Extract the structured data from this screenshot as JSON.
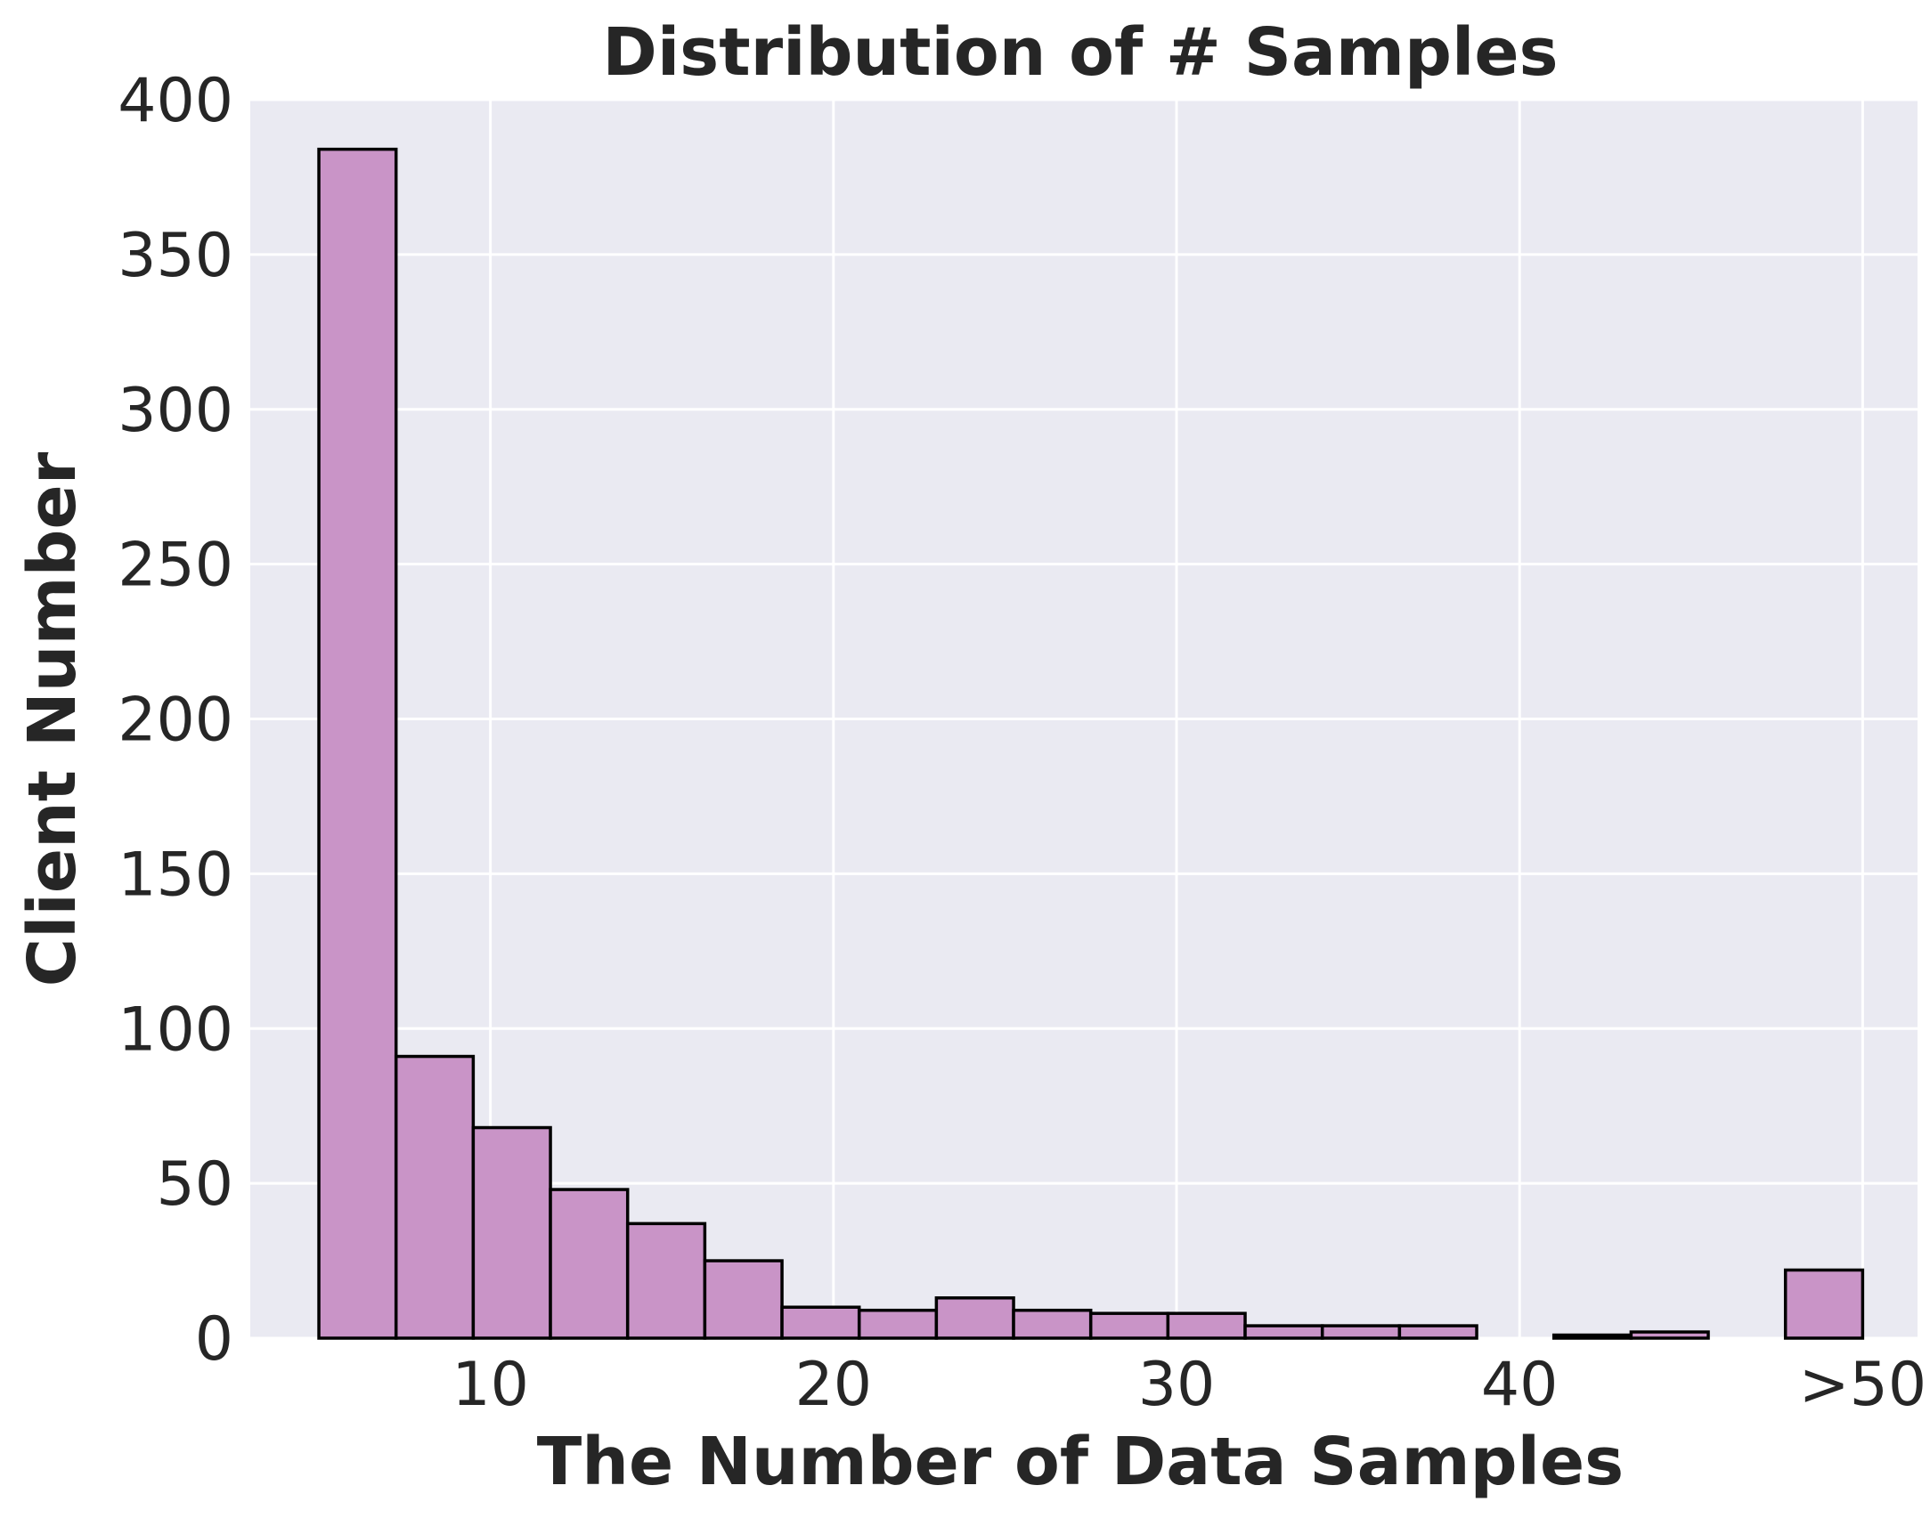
{
  "chart_data": {
    "type": "bar",
    "title": "Distribution of # Samples",
    "xlabel": "The Number of Data Samples",
    "ylabel": "Client Number",
    "xlim": [
      3,
      51.6
    ],
    "ylim": [
      0,
      400
    ],
    "x_ticks": [
      {
        "value": 10,
        "label": "10"
      },
      {
        "value": 20,
        "label": "20"
      },
      {
        "value": 30,
        "label": "30"
      },
      {
        "value": 40,
        "label": "40"
      },
      {
        "value": 50,
        "label": ">50"
      }
    ],
    "y_ticks": [
      0,
      50,
      100,
      150,
      200,
      250,
      300,
      350,
      400
    ],
    "bin_edges": [
      5,
      7.25,
      9.5,
      11.75,
      14,
      16.25,
      18.5,
      20.75,
      23,
      25.25,
      27.5,
      29.75,
      32,
      34.25,
      36.5,
      38.75,
      41,
      43.25,
      45.5,
      47.75,
      50
    ],
    "values": [
      384,
      91,
      68,
      48,
      37,
      25,
      10,
      9,
      13,
      9,
      8,
      8,
      4,
      4,
      4,
      0,
      1,
      2,
      0,
      22
    ],
    "grid": true,
    "colors": {
      "bar_fill": "#c994c7",
      "bar_edge": "#000000",
      "plot_background": "#eaeaf2",
      "grid": "#ffffff",
      "text": "#262626"
    }
  }
}
